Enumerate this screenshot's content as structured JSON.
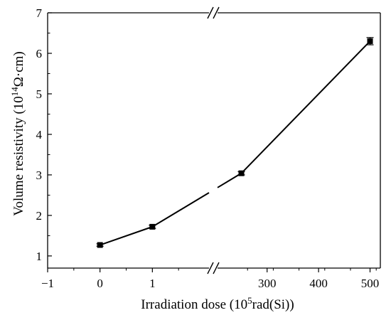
{
  "chart_data": {
    "type": "line",
    "xlabel": {
      "main": "Irradiation dose (10",
      "sup": "5",
      "rest": "rad(Si))"
    },
    "ylabel": {
      "main": "Volume resistivity (10",
      "sup": "14",
      "rest": "Ω·cm)"
    },
    "ylim": [
      0.7,
      7
    ],
    "y_ticks": [
      "1",
      "2",
      "3",
      "4",
      "5",
      "6",
      "7"
    ],
    "x_broken_axis": true,
    "x_segments": [
      {
        "range": [
          -1,
          2
        ],
        "ticks": [
          "−1",
          "0",
          "1"
        ]
      },
      {
        "range": [
          212,
          520
        ],
        "ticks": [
          "300",
          "400",
          "500"
        ]
      }
    ],
    "series": [
      {
        "x": [
          0,
          1,
          250,
          500
        ],
        "y": [
          1.27,
          1.72,
          3.04,
          6.3
        ],
        "yerr": [
          0.03,
          0.04,
          0.04,
          0.09
        ]
      }
    ],
    "grid": false,
    "legend": "none",
    "colors": {
      "line": "#000000",
      "marker": "#000000",
      "axis": "#000000"
    }
  }
}
